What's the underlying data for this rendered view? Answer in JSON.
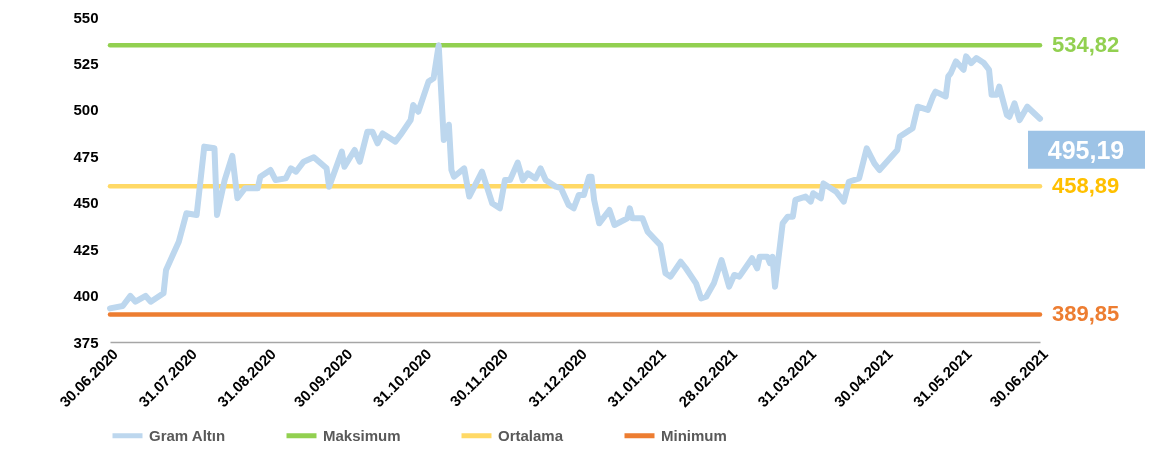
{
  "chart_data": {
    "type": "line",
    "legend": "bottom",
    "line_style": "solid",
    "marker": "none",
    "xlim": [
      "2020-06-30",
      "2021-06-30"
    ],
    "xticks": [
      {
        "value": "2020-06-30",
        "label": "30.06.2020"
      },
      {
        "value": "2020-07-31",
        "label": "31.07.2020"
      },
      {
        "value": "2020-08-31",
        "label": "31.08.2020"
      },
      {
        "value": "2020-09-30",
        "label": "30.09.2020"
      },
      {
        "value": "2020-10-31",
        "label": "31.10.2020"
      },
      {
        "value": "2020-11-30",
        "label": "30.11.2020"
      },
      {
        "value": "2020-12-31",
        "label": "31.12.2020"
      },
      {
        "value": "2021-01-31",
        "label": "31.01.2021"
      },
      {
        "value": "2021-02-28",
        "label": "28.02.2021"
      },
      {
        "value": "2021-03-31",
        "label": "31.03.2021"
      },
      {
        "value": "2021-04-30",
        "label": "30.04.2021"
      },
      {
        "value": "2021-05-31",
        "label": "31.05.2021"
      },
      {
        "value": "2021-06-30",
        "label": "30.06.2021"
      }
    ],
    "ylim": [
      375,
      550
    ],
    "yticks": [
      375,
      400,
      425,
      450,
      475,
      500,
      525,
      550
    ],
    "annotations": [
      {
        "text": "495,19",
        "x": "2021-06-30",
        "y": 495.19
      }
    ],
    "series": [
      {
        "name": "Gram Altın",
        "color": "#bdd7ee",
        "x": [
          "2020-06-30",
          "2020-07-05",
          "2020-07-08",
          "2020-07-10",
          "2020-07-14",
          "2020-07-16",
          "2020-07-21",
          "2020-07-22",
          "2020-07-27",
          "2020-07-30",
          "2020-08-03",
          "2020-08-06",
          "2020-08-10",
          "2020-08-11",
          "2020-08-14",
          "2020-08-17",
          "2020-08-19",
          "2020-08-22",
          "2020-08-27",
          "2020-08-28",
          "2020-09-01",
          "2020-09-03",
          "2020-09-07",
          "2020-09-09",
          "2020-09-11",
          "2020-09-14",
          "2020-09-18",
          "2020-09-23",
          "2020-09-24",
          "2020-09-29",
          "2020-09-30",
          "2020-10-04",
          "2020-10-06",
          "2020-10-09",
          "2020-10-11",
          "2020-10-13",
          "2020-10-15",
          "2020-10-20",
          "2020-10-22",
          "2020-10-26",
          "2020-10-27",
          "2020-10-29",
          "2020-11-02",
          "2020-11-04",
          "2020-11-06",
          "2020-11-08",
          "2020-11-10",
          "2020-11-11",
          "2020-11-12",
          "2020-11-16",
          "2020-11-18",
          "2020-11-23",
          "2020-11-27",
          "2020-11-30",
          "2020-12-02",
          "2020-12-04",
          "2020-12-07",
          "2020-12-09",
          "2020-12-11",
          "2020-12-14",
          "2020-12-16",
          "2020-12-18",
          "2020-12-22",
          "2020-12-24",
          "2020-12-27",
          "2020-12-29",
          "2020-12-31",
          "2021-01-02",
          "2021-01-04",
          "2021-01-05",
          "2021-01-06",
          "2021-01-08",
          "2021-01-12",
          "2021-01-14",
          "2021-01-19",
          "2021-01-20",
          "2021-01-21",
          "2021-01-25",
          "2021-01-27",
          "2021-02-01",
          "2021-02-03",
          "2021-02-05",
          "2021-02-09",
          "2021-02-11",
          "2021-02-15",
          "2021-02-17",
          "2021-02-19",
          "2021-02-22",
          "2021-02-25",
          "2021-02-28",
          "2021-03-02",
          "2021-03-04",
          "2021-03-09",
          "2021-03-11",
          "2021-03-12",
          "2021-03-15",
          "2021-03-16",
          "2021-03-17",
          "2021-03-18",
          "2021-03-21",
          "2021-03-23",
          "2021-03-25",
          "2021-03-26",
          "2021-03-30",
          "2021-04-01",
          "2021-04-02",
          "2021-04-05",
          "2021-04-06",
          "2021-04-11",
          "2021-04-14",
          "2021-04-16",
          "2021-04-20",
          "2021-04-23",
          "2021-04-26",
          "2021-04-28",
          "2021-05-05",
          "2021-05-06",
          "2021-05-11",
          "2021-05-13",
          "2021-05-17",
          "2021-05-19",
          "2021-05-20",
          "2021-05-24",
          "2021-05-25",
          "2021-05-26",
          "2021-05-28",
          "2021-05-31",
          "2021-06-01",
          "2021-06-03",
          "2021-06-05",
          "2021-06-08",
          "2021-06-10",
          "2021-06-11",
          "2021-06-13",
          "2021-06-14",
          "2021-06-17",
          "2021-06-18",
          "2021-06-20",
          "2021-06-22",
          "2021-06-25",
          "2021-06-30"
        ],
        "values": [
          393.1,
          394.4,
          399.8,
          396.7,
          399.8,
          396.7,
          401.2,
          413.8,
          429,
          444.3,
          443.4,
          480.2,
          479.3,
          443.4,
          462.2,
          475.2,
          452.4,
          457.8,
          457.8,
          464,
          467.6,
          462.2,
          463.1,
          468.5,
          466.7,
          472.1,
          474.5,
          468.5,
          458.6,
          477.5,
          469.4,
          478.4,
          472.1,
          488.2,
          488.2,
          482,
          487.3,
          482.9,
          486.5,
          494.5,
          502.6,
          499,
          515.2,
          517,
          534.82,
          483.8,
          492,
          467.6,
          464,
          468.5,
          453.3,
          466.7,
          449.7,
          447,
          462.2,
          462.2,
          471.6,
          462.2,
          465.8,
          463.1,
          468.5,
          462.2,
          458.6,
          457.8,
          448.8,
          447,
          454.2,
          454.2,
          464,
          464,
          451.5,
          438.9,
          446.1,
          438,
          441.6,
          447,
          441.6,
          441.6,
          434.4,
          427.2,
          412,
          410.2,
          418.2,
          414.7,
          406.6,
          398.5,
          399.4,
          406.6,
          419.1,
          404.8,
          411.1,
          410.2,
          420.1,
          414.7,
          420.9,
          420.9,
          417.4,
          420.9,
          404.8,
          438.9,
          442.5,
          442.5,
          451.5,
          453.3,
          450.6,
          455.1,
          452.4,
          460.4,
          455.9,
          450.6,
          461.3,
          463.1,
          479.3,
          471.2,
          467.6,
          478.4,
          485.6,
          490.1,
          501.7,
          500,
          507.2,
          509.8,
          507.2,
          518,
          519.8,
          526.1,
          521.6,
          528.8,
          525.2,
          527.9,
          525.2,
          521.6,
          508.1,
          508.1,
          512.5,
          497.2,
          496.3,
          503.5,
          494.5,
          501.7,
          495.19
        ]
      },
      {
        "name": "Maksimum",
        "color": "#92d050",
        "x": [
          "2020-06-30",
          "2021-06-30"
        ],
        "values": [
          534.82,
          534.82
        ],
        "value_labels": [
          null,
          "534,82"
        ]
      },
      {
        "name": "Ortalama",
        "color": "#ffd966",
        "x": [
          "2020-06-30",
          "2021-06-30"
        ],
        "values": [
          458.89,
          458.89
        ],
        "value_labels": [
          null,
          "458,89"
        ]
      },
      {
        "name": "Minimum",
        "color": "#ed7d31",
        "x": [
          "2020-06-30",
          "2021-06-30"
        ],
        "values": [
          389.85,
          389.85
        ],
        "value_labels": [
          null,
          "389,85"
        ]
      }
    ]
  }
}
